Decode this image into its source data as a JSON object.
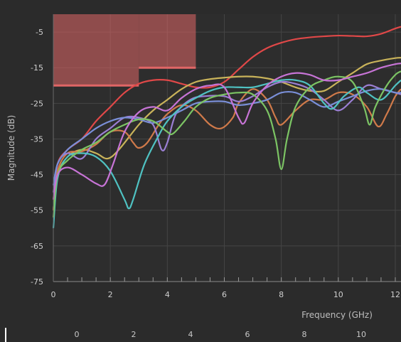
{
  "chart_data": {
    "type": "line",
    "title": "",
    "xlabel": "Frequency (GHz)",
    "ylabel": "Magnitude (dB)",
    "xlim": [
      0,
      12.2
    ],
    "ylim": [
      -75,
      0
    ],
    "x_ticks": [
      "0",
      "2",
      "4",
      "6",
      "8",
      "10",
      "12"
    ],
    "y_ticks": [
      "-5",
      "-15",
      "-25",
      "-35",
      "-45",
      "-55",
      "-65",
      "-75"
    ],
    "overview_ticks": [
      "0",
      "2",
      "4",
      "6",
      "8",
      "10"
    ],
    "grid": true,
    "limit_mask": {
      "color": "#e06666",
      "segments": [
        {
          "x0": 0,
          "x1": 3,
          "y": -20
        },
        {
          "x0": 3,
          "x1": 5,
          "y": -15
        }
      ]
    },
    "series": [
      {
        "color": "#e04848",
        "points": [
          [
            0,
            -52
          ],
          [
            0.15,
            -42
          ],
          [
            0.5,
            -38
          ],
          [
            1,
            -35
          ],
          [
            1.5,
            -30
          ],
          [
            2,
            -26
          ],
          [
            2.5,
            -22
          ],
          [
            3,
            -19.5
          ],
          [
            3.5,
            -18.5
          ],
          [
            4,
            -18.5
          ],
          [
            4.5,
            -19.5
          ],
          [
            5,
            -20.5
          ],
          [
            5.5,
            -20.5
          ],
          [
            6,
            -19
          ],
          [
            6.5,
            -15.5
          ],
          [
            7,
            -12
          ],
          [
            7.5,
            -9.5
          ],
          [
            8,
            -8
          ],
          [
            8.5,
            -7
          ],
          [
            9,
            -6.5
          ],
          [
            9.5,
            -6.2
          ],
          [
            10,
            -6
          ],
          [
            10.5,
            -6.1
          ],
          [
            11,
            -6.2
          ],
          [
            11.5,
            -5.5
          ],
          [
            12,
            -4
          ],
          [
            12.2,
            -3.5
          ]
        ]
      },
      {
        "color": "#c9b35a",
        "points": [
          [
            0,
            -55
          ],
          [
            0.15,
            -45
          ],
          [
            0.5,
            -40
          ],
          [
            1,
            -38
          ],
          [
            1.5,
            -39
          ],
          [
            1.9,
            -40.5
          ],
          [
            2.3,
            -38
          ],
          [
            3,
            -31
          ],
          [
            3.5,
            -27
          ],
          [
            4,
            -24
          ],
          [
            4.5,
            -21
          ],
          [
            5,
            -19
          ],
          [
            5.5,
            -18.2
          ],
          [
            6,
            -17.8
          ],
          [
            6.5,
            -17.5
          ],
          [
            7,
            -17.5
          ],
          [
            7.5,
            -18
          ],
          [
            8,
            -19
          ],
          [
            8.5,
            -20.5
          ],
          [
            9,
            -21.5
          ],
          [
            9.5,
            -21.5
          ],
          [
            10,
            -19
          ],
          [
            10.5,
            -16.5
          ],
          [
            11,
            -14
          ],
          [
            11.5,
            -13
          ],
          [
            12,
            -12.3
          ],
          [
            12.2,
            -12.2
          ]
        ]
      },
      {
        "color": "#d07a4a",
        "points": [
          [
            0,
            -55
          ],
          [
            0.15,
            -44
          ],
          [
            0.5,
            -39
          ],
          [
            1,
            -38.5
          ],
          [
            1.5,
            -36.5
          ],
          [
            2,
            -33
          ],
          [
            2.5,
            -33
          ],
          [
            2.8,
            -36
          ],
          [
            3,
            -37.5
          ],
          [
            3.3,
            -36
          ],
          [
            3.7,
            -31
          ],
          [
            4,
            -28
          ],
          [
            4.5,
            -25.5
          ],
          [
            5,
            -27
          ],
          [
            5.5,
            -31
          ],
          [
            5.9,
            -32
          ],
          [
            6.3,
            -29
          ],
          [
            6.5,
            -25
          ],
          [
            7,
            -21
          ],
          [
            7.5,
            -24
          ],
          [
            7.8,
            -29
          ],
          [
            8,
            -31
          ],
          [
            8.5,
            -27
          ],
          [
            9,
            -24
          ],
          [
            9.5,
            -24
          ],
          [
            10,
            -22
          ],
          [
            10.5,
            -22.5
          ],
          [
            11,
            -26
          ],
          [
            11.4,
            -31.5
          ],
          [
            11.7,
            -28
          ],
          [
            12,
            -23
          ],
          [
            12.2,
            -21
          ]
        ]
      },
      {
        "color": "#9b7fd4",
        "points": [
          [
            0,
            -50
          ],
          [
            0.15,
            -42
          ],
          [
            0.5,
            -39
          ],
          [
            1,
            -40.5
          ],
          [
            1.5,
            -35
          ],
          [
            2,
            -32
          ],
          [
            2.5,
            -29
          ],
          [
            3,
            -29
          ],
          [
            3.5,
            -31
          ],
          [
            3.8,
            -38
          ],
          [
            4,
            -36
          ],
          [
            4.3,
            -28
          ],
          [
            4.8,
            -24
          ],
          [
            5.3,
            -23
          ],
          [
            6,
            -23
          ],
          [
            6.5,
            -24.5
          ],
          [
            7,
            -23
          ],
          [
            7.5,
            -20.5
          ],
          [
            8,
            -19
          ],
          [
            8.5,
            -19.5
          ],
          [
            9,
            -21
          ],
          [
            9.5,
            -24
          ],
          [
            10,
            -27
          ],
          [
            10.5,
            -24
          ],
          [
            11,
            -20
          ],
          [
            11.5,
            -21
          ],
          [
            12,
            -22
          ],
          [
            12.2,
            -22.5
          ]
        ]
      },
      {
        "color": "#7a8fd8",
        "points": [
          [
            0,
            -48
          ],
          [
            0.15,
            -42
          ],
          [
            0.5,
            -38
          ],
          [
            1,
            -35
          ],
          [
            1.5,
            -32
          ],
          [
            2,
            -30
          ],
          [
            2.5,
            -29
          ],
          [
            3,
            -29.5
          ],
          [
            3.5,
            -30.5
          ],
          [
            4,
            -29
          ],
          [
            4.5,
            -27
          ],
          [
            5,
            -25
          ],
          [
            5.5,
            -24.5
          ],
          [
            6,
            -24.5
          ],
          [
            6.5,
            -25.5
          ],
          [
            7,
            -25
          ],
          [
            7.5,
            -24
          ],
          [
            8,
            -22
          ],
          [
            8.5,
            -22
          ],
          [
            9,
            -24
          ],
          [
            9.5,
            -26
          ],
          [
            10,
            -24.5
          ],
          [
            10.5,
            -23
          ],
          [
            11,
            -21.5
          ],
          [
            11.5,
            -21
          ],
          [
            12,
            -22
          ],
          [
            12.2,
            -22
          ]
        ]
      },
      {
        "color": "#4fc2c2",
        "points": [
          [
            0,
            -60
          ],
          [
            0.15,
            -46
          ],
          [
            0.5,
            -40
          ],
          [
            1,
            -39
          ],
          [
            1.5,
            -40
          ],
          [
            2,
            -44
          ],
          [
            2.5,
            -52
          ],
          [
            2.65,
            -54.5
          ],
          [
            2.8,
            -52
          ],
          [
            3.2,
            -42
          ],
          [
            3.7,
            -34
          ],
          [
            4,
            -30
          ],
          [
            4.5,
            -26
          ],
          [
            5,
            -23.5
          ],
          [
            5.5,
            -21.5
          ],
          [
            6,
            -20.5
          ],
          [
            6.5,
            -20.5
          ],
          [
            7,
            -20.5
          ],
          [
            7.5,
            -19.5
          ],
          [
            8,
            -18.5
          ],
          [
            8.5,
            -18.5
          ],
          [
            9,
            -20
          ],
          [
            9.5,
            -25
          ],
          [
            9.8,
            -26.5
          ],
          [
            10.2,
            -23
          ],
          [
            10.7,
            -20.5
          ],
          [
            11,
            -22
          ],
          [
            11.5,
            -24
          ],
          [
            12,
            -20
          ],
          [
            12.2,
            -18.5
          ]
        ]
      },
      {
        "color": "#7cc464",
        "points": [
          [
            0,
            -57
          ],
          [
            0.15,
            -45
          ],
          [
            0.5,
            -41
          ],
          [
            1,
            -38
          ],
          [
            1.5,
            -36
          ],
          [
            2,
            -33
          ],
          [
            2.5,
            -31
          ],
          [
            3,
            -29.5
          ],
          [
            3.5,
            -30
          ],
          [
            4,
            -33
          ],
          [
            4.2,
            -33.5
          ],
          [
            4.6,
            -30
          ],
          [
            5,
            -26
          ],
          [
            5.5,
            -23.5
          ],
          [
            6,
            -22.5
          ],
          [
            6.5,
            -22
          ],
          [
            7,
            -22.5
          ],
          [
            7.5,
            -27
          ],
          [
            7.8,
            -35
          ],
          [
            8,
            -43.5
          ],
          [
            8.2,
            -35
          ],
          [
            8.5,
            -26
          ],
          [
            9,
            -20.5
          ],
          [
            9.5,
            -18.5
          ],
          [
            10,
            -17.5
          ],
          [
            10.5,
            -19
          ],
          [
            10.9,
            -26
          ],
          [
            11.1,
            -31
          ],
          [
            11.3,
            -26
          ],
          [
            11.7,
            -20
          ],
          [
            12,
            -17
          ],
          [
            12.2,
            -16
          ]
        ]
      },
      {
        "color": "#c774d6",
        "points": [
          [
            0,
            -52
          ],
          [
            0.15,
            -45
          ],
          [
            0.5,
            -43
          ],
          [
            1,
            -45
          ],
          [
            1.5,
            -47.5
          ],
          [
            1.8,
            -47.8
          ],
          [
            2.1,
            -42
          ],
          [
            2.5,
            -33
          ],
          [
            3,
            -27.5
          ],
          [
            3.5,
            -26
          ],
          [
            4,
            -27
          ],
          [
            4.5,
            -23.5
          ],
          [
            5,
            -21
          ],
          [
            5.5,
            -20
          ],
          [
            6,
            -20.5
          ],
          [
            6.5,
            -29
          ],
          [
            6.7,
            -30.5
          ],
          [
            7,
            -25
          ],
          [
            7.5,
            -20
          ],
          [
            8,
            -17.5
          ],
          [
            8.5,
            -16.5
          ],
          [
            9,
            -17
          ],
          [
            9.5,
            -18.5
          ],
          [
            10,
            -18.5
          ],
          [
            10.5,
            -17.5
          ],
          [
            11,
            -16.5
          ],
          [
            11.5,
            -15
          ],
          [
            12,
            -14
          ],
          [
            12.2,
            -13.8
          ]
        ]
      }
    ]
  }
}
